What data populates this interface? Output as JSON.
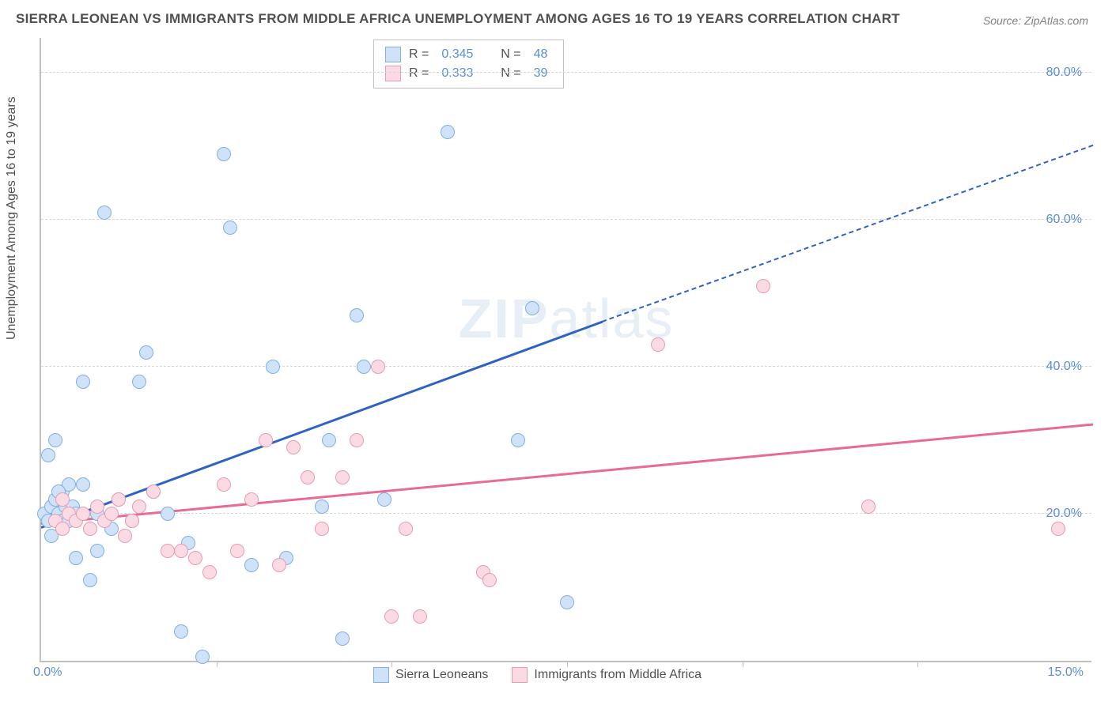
{
  "title": "SIERRA LEONEAN VS IMMIGRANTS FROM MIDDLE AFRICA UNEMPLOYMENT AMONG AGES 16 TO 19 YEARS CORRELATION CHART",
  "source": "Source: ZipAtlas.com",
  "watermark": "ZIPatlas",
  "ylabel": "Unemployment Among Ages 16 to 19 years",
  "chart": {
    "type": "scatter",
    "xlim": [
      0,
      15
    ],
    "ylim": [
      0,
      85
    ],
    "x_tick_labels": {
      "left": "0.0%",
      "right": "15.0%"
    },
    "y_ticks": [
      20,
      40,
      60,
      80
    ],
    "y_tick_labels": [
      "20.0%",
      "40.0%",
      "60.0%",
      "80.0%"
    ],
    "x_major_ticks": [
      2.5,
      5.0,
      7.5,
      10.0,
      12.5
    ],
    "background_color": "#ffffff",
    "grid_color": "#d8d8d8",
    "axis_color": "#c0c0c0",
    "tick_label_color": "#5b8fd6",
    "label_color": "#505050",
    "title_fontsize": 17,
    "tick_fontsize": 16,
    "label_fontsize": 16,
    "marker_radius": 9,
    "marker_border_width": 1.5,
    "trend_solid_width": 3,
    "trend_dash_width": 2
  },
  "series": [
    {
      "name": "Sierra Leoneans",
      "fill": "#cfe2f8",
      "stroke": "#7fb0e6",
      "trend_color": "#2e63c4",
      "R": "0.345",
      "N": "48",
      "trend": {
        "x1": 0,
        "y1": 18,
        "x2": 8,
        "y2": 46,
        "x2_dash": 15,
        "y2_dash": 70
      },
      "points": [
        [
          0.05,
          20
        ],
        [
          0.1,
          19
        ],
        [
          0.1,
          28
        ],
        [
          0.15,
          21
        ],
        [
          0.2,
          22
        ],
        [
          0.2,
          30
        ],
        [
          0.25,
          20
        ],
        [
          0.3,
          19
        ],
        [
          0.3,
          23
        ],
        [
          0.35,
          21
        ],
        [
          0.4,
          19
        ],
        [
          0.4,
          24
        ],
        [
          0.45,
          21
        ],
        [
          0.5,
          20
        ],
        [
          0.5,
          14
        ],
        [
          0.6,
          38
        ],
        [
          0.7,
          11
        ],
        [
          0.8,
          20
        ],
        [
          0.9,
          61
        ],
        [
          1.0,
          18
        ],
        [
          1.1,
          22
        ],
        [
          1.3,
          19
        ],
        [
          1.4,
          38
        ],
        [
          1.5,
          42
        ],
        [
          1.6,
          23
        ],
        [
          1.8,
          20
        ],
        [
          2.0,
          4
        ],
        [
          2.1,
          16
        ],
        [
          2.3,
          0.5
        ],
        [
          2.6,
          69
        ],
        [
          2.7,
          59
        ],
        [
          3.0,
          13
        ],
        [
          3.3,
          40
        ],
        [
          3.5,
          14
        ],
        [
          4.1,
          30
        ],
        [
          4.3,
          3
        ],
        [
          4.5,
          47
        ],
        [
          4.6,
          40
        ],
        [
          4.9,
          22
        ],
        [
          5.8,
          72
        ],
        [
          6.8,
          30
        ],
        [
          7.0,
          48
        ],
        [
          4.0,
          21
        ],
        [
          0.6,
          24
        ],
        [
          0.15,
          17
        ],
        [
          7.5,
          8
        ],
        [
          0.8,
          15
        ],
        [
          0.25,
          23
        ]
      ]
    },
    {
      "name": "Immigrants from Middle Africa",
      "fill": "#fadbe3",
      "stroke": "#ea9ab2",
      "trend_color": "#e76b94",
      "R": "0.333",
      "N": "39",
      "trend": {
        "x1": 0,
        "y1": 18.5,
        "x2": 15,
        "y2": 32,
        "x2_dash": 15,
        "y2_dash": 32
      },
      "points": [
        [
          0.2,
          19
        ],
        [
          0.3,
          18
        ],
        [
          0.4,
          20
        ],
        [
          0.5,
          19
        ],
        [
          0.6,
          20
        ],
        [
          0.7,
          18
        ],
        [
          0.8,
          21
        ],
        [
          0.9,
          19
        ],
        [
          1.0,
          20
        ],
        [
          1.1,
          22
        ],
        [
          1.3,
          19
        ],
        [
          1.4,
          21
        ],
        [
          1.6,
          23
        ],
        [
          1.8,
          15
        ],
        [
          2.0,
          15
        ],
        [
          2.2,
          14
        ],
        [
          2.4,
          12
        ],
        [
          2.6,
          24
        ],
        [
          2.8,
          15
        ],
        [
          3.0,
          22
        ],
        [
          3.2,
          30
        ],
        [
          3.4,
          13
        ],
        [
          3.6,
          29
        ],
        [
          3.8,
          25
        ],
        [
          4.0,
          18
        ],
        [
          4.3,
          25
        ],
        [
          4.5,
          30
        ],
        [
          4.8,
          40
        ],
        [
          5.0,
          6
        ],
        [
          5.2,
          18
        ],
        [
          5.4,
          6
        ],
        [
          6.3,
          12
        ],
        [
          6.4,
          11
        ],
        [
          8.8,
          43
        ],
        [
          10.3,
          51
        ],
        [
          11.8,
          21
        ],
        [
          14.5,
          18
        ],
        [
          0.3,
          22
        ],
        [
          1.2,
          17
        ]
      ]
    }
  ],
  "legend_top": {
    "rows": [
      {
        "swatch": 0,
        "r_label": "R =",
        "r_val": "0.345",
        "n_label": "N =",
        "n_val": "48"
      },
      {
        "swatch": 1,
        "r_label": "R =",
        "r_val": "0.333",
        "n_label": "N =",
        "n_val": "39"
      }
    ]
  },
  "legend_bottom": [
    {
      "swatch": 0,
      "label": "Sierra Leoneans"
    },
    {
      "swatch": 1,
      "label": "Immigrants from Middle Africa"
    }
  ]
}
